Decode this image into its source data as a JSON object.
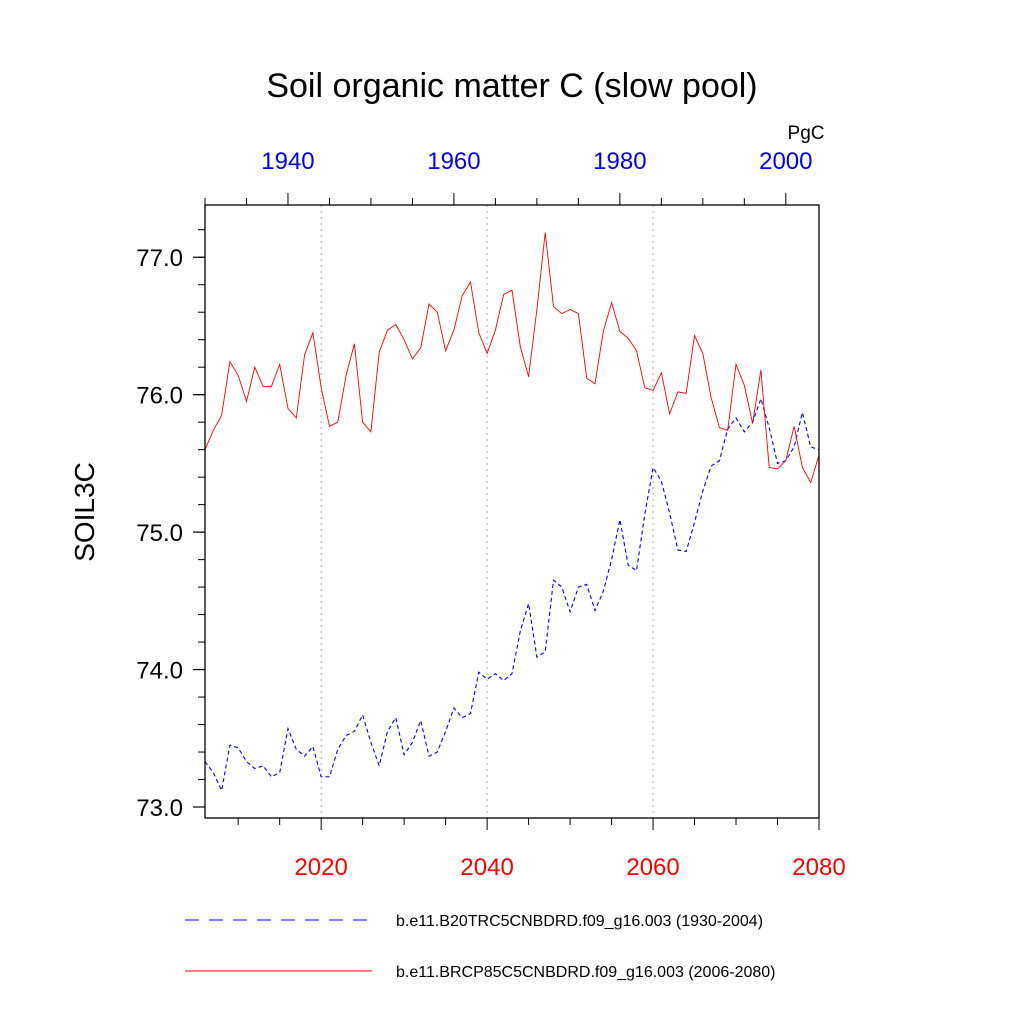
{
  "chart_data": {
    "type": "line",
    "title": "Soil organic matter C (slow pool)",
    "ylabel": "SOIL3C",
    "units": "PgC",
    "ylim": [
      72.92,
      77.38
    ],
    "yticks": [
      "73.0",
      "74.0",
      "75.0",
      "76.0",
      "77.0"
    ],
    "y_minor_step": 0.2,
    "grid": "dotted vertical lines at bottom-axis major ticks",
    "legend_placement": "bottom",
    "colors": {
      "hist": "#0000ff",
      "rcp": "#ff0000",
      "grid": "#b0b0b0",
      "axis": "#000000"
    },
    "x_bottom": {
      "xlim": [
        2006,
        2080
      ],
      "ticks": [
        "2020",
        "2040",
        "2060",
        "2080"
      ],
      "color": "#ff0000"
    },
    "x_top": {
      "xlim": [
        1930,
        2004
      ],
      "ticks": [
        "1940",
        "1960",
        "1980",
        "2000"
      ],
      "color": "#0000ff"
    },
    "series": [
      {
        "name": "b.e11.B20TRC5CNBDRD.f09_g16.003 (1930-2004)",
        "axis": "top",
        "style": "dashed",
        "x_start": 1930,
        "values": [
          73.33,
          73.25,
          73.12,
          73.45,
          73.43,
          73.33,
          73.28,
          73.3,
          73.22,
          73.25,
          73.57,
          73.42,
          73.37,
          73.44,
          73.22,
          73.22,
          73.42,
          73.52,
          73.55,
          73.67,
          73.47,
          73.3,
          73.55,
          73.65,
          73.38,
          73.47,
          73.63,
          73.37,
          73.4,
          73.55,
          73.72,
          73.65,
          73.68,
          73.98,
          73.93,
          73.97,
          73.92,
          73.97,
          74.28,
          74.48,
          74.09,
          74.13,
          74.65,
          74.6,
          74.42,
          74.6,
          74.62,
          74.43,
          74.57,
          74.8,
          75.09,
          74.76,
          74.72,
          75.13,
          75.47,
          75.37,
          75.14,
          74.87,
          74.86,
          75.07,
          75.3,
          75.48,
          75.52,
          75.75,
          75.83,
          75.73,
          75.8,
          75.97,
          75.76,
          75.5,
          75.52,
          75.62,
          75.87,
          75.62,
          75.6
        ]
      },
      {
        "name": "b.e11.BRCP85C5CNBDRD.f09_g16.003 (2006-2080)",
        "axis": "bottom",
        "style": "solid",
        "x_start": 2006,
        "values": [
          75.6,
          75.74,
          75.85,
          76.24,
          76.14,
          75.95,
          76.2,
          76.06,
          76.06,
          76.22,
          75.9,
          75.83,
          76.29,
          76.45,
          76.05,
          75.77,
          75.8,
          76.14,
          76.37,
          75.8,
          75.73,
          76.31,
          76.47,
          76.51,
          76.4,
          76.26,
          76.34,
          76.66,
          76.6,
          76.32,
          76.47,
          76.72,
          76.82,
          76.45,
          76.3,
          76.47,
          76.73,
          76.76,
          76.35,
          76.13,
          76.62,
          77.18,
          76.64,
          76.59,
          76.62,
          76.59,
          76.12,
          76.08,
          76.46,
          76.67,
          76.46,
          76.41,
          76.32,
          76.05,
          76.03,
          76.16,
          75.86,
          76.02,
          76.01,
          76.43,
          76.3,
          75.98,
          75.76,
          75.74,
          76.22,
          76.07,
          75.79,
          76.18,
          75.47,
          75.46,
          75.52,
          75.77,
          75.47,
          75.36,
          75.56
        ]
      }
    ]
  }
}
